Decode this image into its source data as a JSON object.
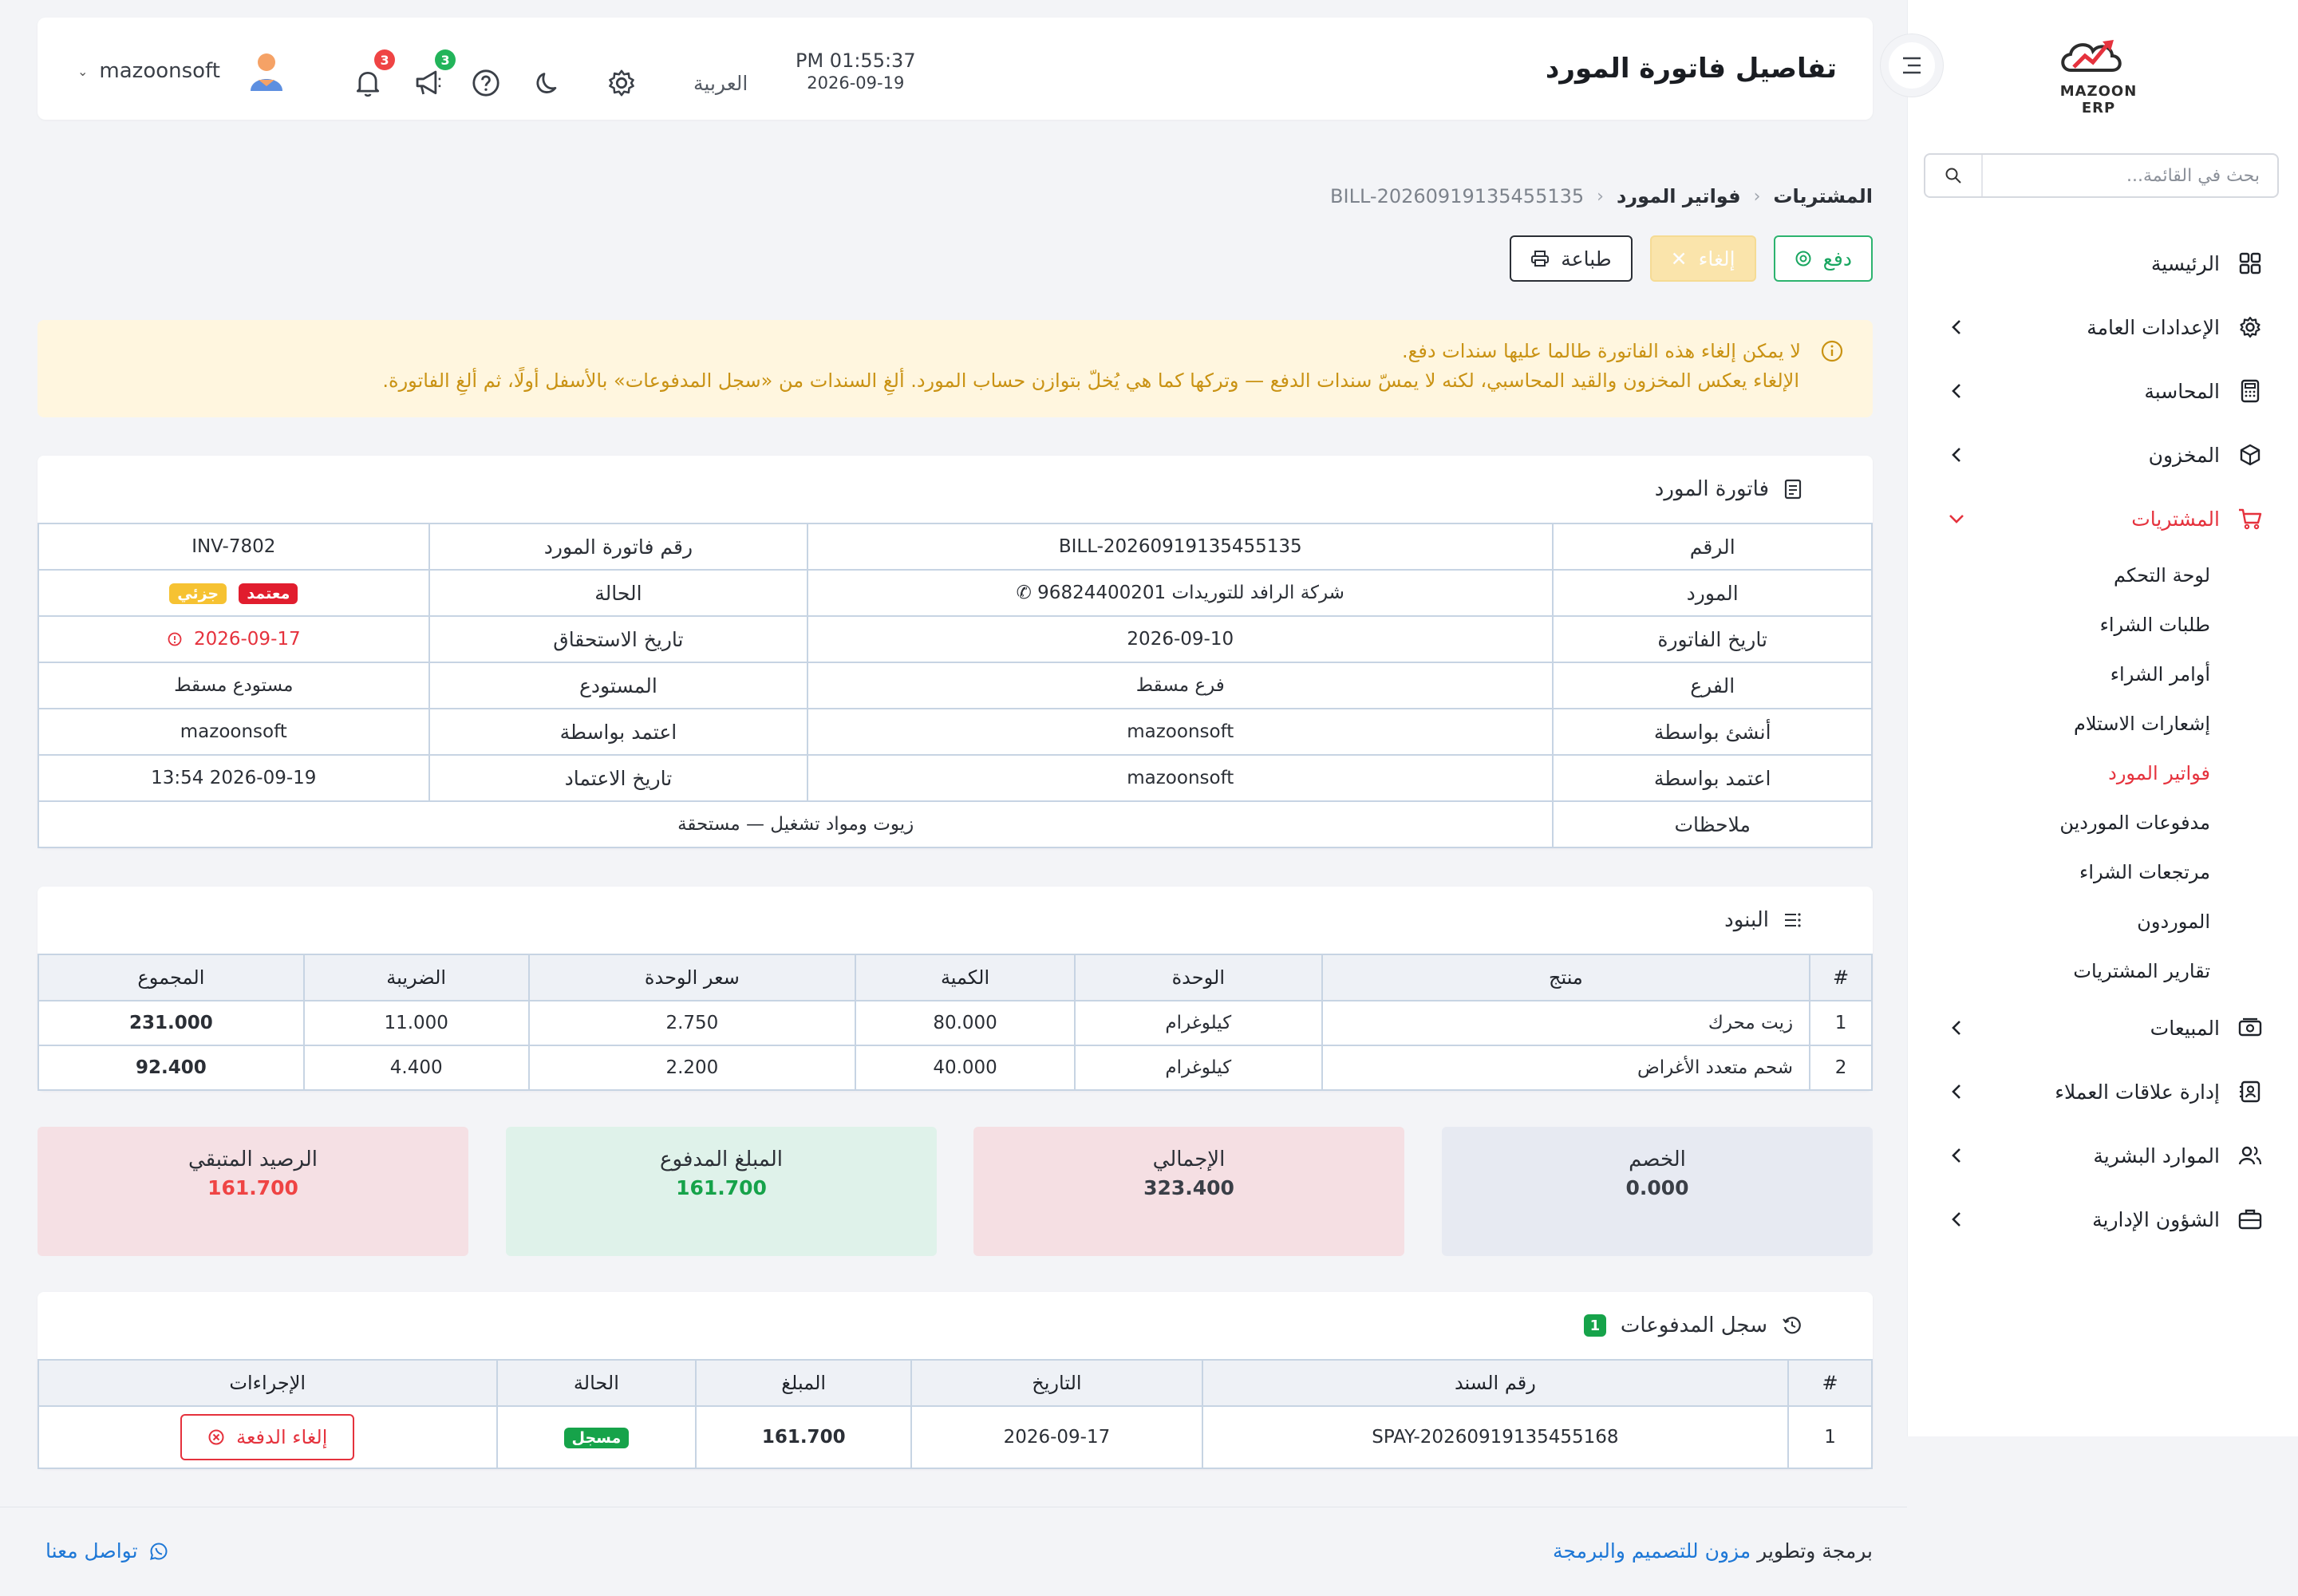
{
  "app": {
    "logo_text": "MAZOON ERP",
    "page_title": "تفاصيل فاتورة المورد"
  },
  "header": {
    "time": "PM 01:55:37",
    "date": "2026-09-19",
    "language": "العربية",
    "username": "mazoonsoft",
    "notifications_count": "3",
    "announcements_count": "3"
  },
  "sidebar": {
    "search_placeholder": "بحث في القائمة...",
    "items": [
      {
        "label": "الرئيسية",
        "icon": "grid-icon"
      },
      {
        "label": "الإعدادات العامة",
        "icon": "gear-icon"
      },
      {
        "label": "المحاسبة",
        "icon": "calculator-icon"
      },
      {
        "label": "المخزون",
        "icon": "box-icon"
      },
      {
        "label": "المشتريات",
        "icon": "cart-icon"
      },
      {
        "label": "المبيعات",
        "icon": "cash-icon"
      },
      {
        "label": "إدارة علاقات العملاء",
        "icon": "contacts-icon"
      },
      {
        "label": "الموارد البشرية",
        "icon": "users-icon"
      },
      {
        "label": "الشؤون الإدارية",
        "icon": "briefcase-icon"
      }
    ],
    "purchases_sub": [
      "لوحة التحكم",
      "طلبات الشراء",
      "أوامر الشراء",
      "إشعارات الاستلام",
      "فواتير المورد",
      "مدفوعات الموردين",
      "مرتجعات الشراء",
      "الموردون",
      "تقارير المشتريات"
    ]
  },
  "breadcrumb": {
    "root": "المشتريات",
    "section": "فواتير المورد",
    "current": "BILL-20260919135455135"
  },
  "actions": {
    "pay": "دفع",
    "cancel": "إلغاء",
    "print": "طباعة"
  },
  "alert": {
    "line1": "لا يمكن إلغاء هذه الفاتورة طالما عليها سندات دفع.",
    "line2": "الإلغاء يعكس المخزون والقيد المحاسبي، لكنه لا يمسّ سندات الدفع — وتركها كما هي يُخلّ بتوازن حساب المورد. ألغِ السندات من «سجل المدفوعات» بالأسفل أولًا، ثم ألغِ الفاتورة."
  },
  "bill": {
    "title": "فاتورة المورد",
    "number_label": "الرقم",
    "number": "BILL-20260919135455135",
    "supplier_bill_no_label": "رقم فاتورة المورد",
    "supplier_bill_no": "INV-7802",
    "supplier_label": "المورد",
    "supplier": "شركة الرافد للتوريدات 96824400201",
    "status_label": "الحالة",
    "status_approved": "معتمد",
    "status_partial": "جزئي",
    "bill_date_label": "تاريخ الفاتورة",
    "bill_date": "2026-09-10",
    "due_date_label": "تاريخ الاستحقاق",
    "due_date": "2026-09-17",
    "branch_label": "الفرع",
    "branch": "فرع مسقط",
    "warehouse_label": "المستودع",
    "warehouse": "مستودع مسقط",
    "created_by_label": "أنشئ بواسطة",
    "created_by": "mazoonsoft",
    "approved_by_label": "اعتمد بواسطة",
    "approved_by": "mazoonsoft",
    "approved_by_label_2": "اعتمد بواسطة",
    "approved_by_2": "mazoonsoft",
    "approved_date_label": "تاريخ الاعتماد",
    "approved_date": "2026-09-19 13:54",
    "notes_label": "ملاحظات",
    "notes": "زيوت ومواد تشغيل — مستحقة"
  },
  "items": {
    "title": "البنود",
    "headers": {
      "num": "#",
      "product": "منتج",
      "unit": "الوحدة",
      "qty": "الكمية",
      "price": "سعر الوحدة",
      "tax": "الضريبة",
      "total": "المجموع"
    },
    "rows": [
      {
        "num": "1",
        "product": "زيت محرك",
        "unit": "كيلوغرام",
        "qty": "80.000",
        "price": "2.750",
        "tax": "11.000",
        "total": "231.000"
      },
      {
        "num": "2",
        "product": "شحم متعدد الأغراض",
        "unit": "كيلوغرام",
        "qty": "40.000",
        "price": "2.200",
        "tax": "4.400",
        "total": "92.400"
      }
    ]
  },
  "summary": {
    "discount_label": "الخصم",
    "discount": "0.000",
    "total_label": "الإجمالي",
    "total": "323.400",
    "paid_label": "المبلغ المدفوع",
    "paid": "161.700",
    "remaining_label": "الرصيد المتبقي",
    "remaining": "161.700"
  },
  "payments": {
    "title": "سجل المدفوعات",
    "count": "1",
    "headers": {
      "num": "#",
      "voucher": "رقم السند",
      "date": "التاريخ",
      "amount": "المبلغ",
      "status": "الحالة",
      "actions": "الإجراءات"
    },
    "rows": [
      {
        "num": "1",
        "voucher": "SPAY-20260919135455168",
        "date": "2026-09-17",
        "amount": "161.700",
        "status": "مسجل",
        "action": "إلغاء الدفعة"
      }
    ]
  },
  "footer": {
    "credit_prefix": "برمجة وتطوير",
    "credit_link": "مزون للتصميم والبرمجة",
    "contact": "تواصل معنا"
  },
  "colors": {
    "accent": "#e5323d",
    "success": "#16a34a",
    "warning_bg": "#fff6df",
    "warning_text": "#c99213",
    "discount_bg": "#e7eaf2",
    "total_bg": "#f5dfe3",
    "paid_bg": "#dff2ea",
    "remaining_bg": "#f5e0e4"
  }
}
